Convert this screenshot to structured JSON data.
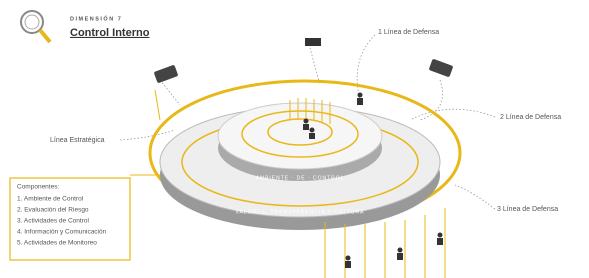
{
  "header": {
    "kicker": "DIMENSIÓN 7",
    "title": "Control Interno"
  },
  "labels": {
    "first_line": "1 Línea de Defensa",
    "second_line": "2 Línea de Defensa",
    "third_line": "3 Línea de Defensa",
    "strategic_line": "Línea Estratégica"
  },
  "rings": {
    "inner": "AMBIENTE · DE · CONTROL",
    "outer": "VALORES, TRANSPARENCIA Y CULTURA"
  },
  "components": {
    "title": "Componentes:",
    "items": [
      "1. Ambiente de Control",
      "2. Evaluación del Riesgo",
      "3. Actividades de Control",
      "4. Información y Comunicación",
      "5. Actividades de Monitoreo"
    ]
  }
}
